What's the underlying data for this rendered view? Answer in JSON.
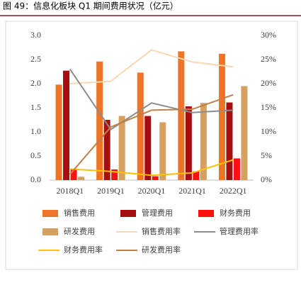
{
  "chart_data": {
    "type": "bar",
    "title": "图 49：信息化板块 Q1 期间费用状况（亿元）",
    "categories": [
      "2018Q1",
      "2019Q1",
      "2020Q1",
      "2021Q1",
      "2022Q1"
    ],
    "ylim": [
      0,
      3
    ],
    "yticks": [
      {
        "value": 0,
        "label": "0.0"
      },
      0.5,
      {
        "value": 1,
        "label": "1.0"
      },
      1.5,
      {
        "value": 2,
        "label": "2.0"
      },
      2.5,
      {
        "value": 3,
        "label": "3.0"
      }
    ],
    "y2lim": [
      0,
      30
    ],
    "y2ticks": [
      {
        "value": 0,
        "label": "0%"
      },
      {
        "value": 5,
        "label": "5%"
      },
      {
        "value": 10,
        "label": "10%"
      },
      {
        "value": 15,
        "label": "15%"
      },
      {
        "value": 20,
        "label": "20%"
      },
      {
        "value": 25,
        "label": "25%"
      },
      {
        "value": 30,
        "label": "30%"
      }
    ],
    "series": [
      {
        "name": "销售费用",
        "type": "bar",
        "color": "#ef7428",
        "values": [
          1.98,
          2.46,
          2.23,
          2.67,
          2.62
        ]
      },
      {
        "name": "管理费用",
        "type": "bar",
        "color": "#a50f0f",
        "values": [
          2.27,
          1.25,
          1.33,
          1.53,
          1.61
        ]
      },
      {
        "name": "财务费用",
        "type": "bar",
        "color": "#ff1010",
        "values": [
          0.22,
          0.22,
          0.08,
          0.18,
          0.45
        ]
      },
      {
        "name": "研发费用",
        "type": "bar",
        "color": "#d6a060",
        "values": [
          0.07,
          1.33,
          1.2,
          1.6,
          1.95
        ]
      },
      {
        "name": "销售费用率",
        "type": "line",
        "axis": "y2",
        "color": "#f9d9b4",
        "values": [
          20,
          20.5,
          27,
          24.5,
          23.5
        ]
      },
      {
        "name": "管理费用率",
        "type": "line",
        "axis": "y2",
        "color": "#8c8c8c",
        "values": [
          23,
          10.5,
          16,
          14,
          14.5
        ]
      },
      {
        "name": "财务费用率",
        "type": "line",
        "axis": "y2",
        "color": "#ffc000",
        "values": [
          2.3,
          1.8,
          1,
          1.5,
          4.2
        ]
      },
      {
        "name": "研发费用率",
        "type": "line",
        "axis": "y2",
        "color": "#c0804a",
        "values": [
          1.2,
          11,
          14.5,
          14.7,
          17.7
        ]
      }
    ]
  }
}
